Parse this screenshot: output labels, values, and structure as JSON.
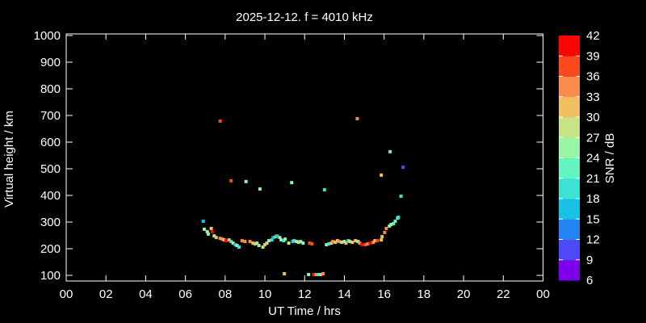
{
  "title": "2025-12-12. f = 4010 kHz",
  "colors": {
    "background": "#000000",
    "foreground": "#ffffff"
  },
  "axes": {
    "x": {
      "label": "UT Time / hrs",
      "min": 0,
      "max": 24,
      "tick_step_hrs": 2,
      "tick_labels": [
        "00",
        "02",
        "04",
        "06",
        "08",
        "10",
        "12",
        "14",
        "16",
        "18",
        "20",
        "22",
        "00"
      ]
    },
    "y": {
      "label": "Virtual height / km",
      "min": 100,
      "max": 1000,
      "tick_step_km": 100,
      "tick_labels": [
        "100",
        "200",
        "300",
        "400",
        "500",
        "600",
        "700",
        "800",
        "900",
        "1000"
      ]
    }
  },
  "colorbar": {
    "label": "SNR / dB",
    "min": 6,
    "max": 42,
    "step": 3,
    "tick_labels": [
      "6",
      "9",
      "12",
      "15",
      "18",
      "21",
      "24",
      "27",
      "30",
      "33",
      "36",
      "39",
      "42"
    ],
    "segment_colors_bottom_to_top": [
      "#7c00ea",
      "#4d49f6",
      "#2484f4",
      "#17c2e6",
      "#3be3d4",
      "#62f5c0",
      "#99f4a5",
      "#c6e385",
      "#f0c060",
      "#f98c4a",
      "#fb4a1e",
      "#fb0404"
    ]
  },
  "chart_data": {
    "type": "scatter",
    "title": "2025-12-12. f = 4010 kHz",
    "xlabel": "UT Time / hrs",
    "ylabel": "Virtual height / km",
    "xlim": [
      0,
      24
    ],
    "ylim": [
      100,
      1000
    ],
    "grid": false,
    "legend_position": "colorbar-right",
    "color_encoding": "SNR / dB",
    "points_format": [
      "ut_hours",
      "virtual_height_km",
      "snr_db"
    ],
    "points": [
      [
        6.9,
        303,
        16
      ],
      [
        6.95,
        273,
        25
      ],
      [
        7.1,
        264,
        28
      ],
      [
        7.15,
        255,
        25
      ],
      [
        7.3,
        276,
        31
      ],
      [
        7.35,
        264,
        40
      ],
      [
        7.45,
        248,
        25
      ],
      [
        7.55,
        242,
        31
      ],
      [
        7.75,
        239,
        34
      ],
      [
        7.85,
        236,
        34
      ],
      [
        7.95,
        233,
        31
      ],
      [
        8.05,
        230,
        40
      ],
      [
        8.2,
        233,
        31
      ],
      [
        8.3,
        227,
        19
      ],
      [
        8.4,
        221,
        28
      ],
      [
        8.5,
        215,
        16
      ],
      [
        8.6,
        212,
        25
      ],
      [
        8.7,
        206,
        19
      ],
      [
        8.85,
        230,
        34
      ],
      [
        9.0,
        227,
        34
      ],
      [
        9.25,
        227,
        34
      ],
      [
        9.4,
        221,
        31
      ],
      [
        9.5,
        218,
        31
      ],
      [
        9.6,
        221,
        25
      ],
      [
        9.7,
        212,
        25
      ],
      [
        9.9,
        206,
        28
      ],
      [
        10.0,
        215,
        31
      ],
      [
        10.1,
        221,
        28
      ],
      [
        10.2,
        230,
        25
      ],
      [
        10.35,
        233,
        19
      ],
      [
        10.42,
        242,
        16
      ],
      [
        10.55,
        245,
        31
      ],
      [
        10.62,
        248,
        16
      ],
      [
        10.75,
        242,
        25
      ],
      [
        10.82,
        233,
        25
      ],
      [
        10.95,
        230,
        19
      ],
      [
        11.02,
        236,
        25
      ],
      [
        11.2,
        221,
        28
      ],
      [
        11.4,
        227,
        16
      ],
      [
        11.47,
        230,
        19
      ],
      [
        11.6,
        227,
        25
      ],
      [
        11.7,
        224,
        28
      ],
      [
        11.8,
        227,
        25
      ],
      [
        11.92,
        221,
        25
      ],
      [
        12.25,
        221,
        37
      ],
      [
        12.37,
        218,
        37
      ],
      [
        13.1,
        215,
        25
      ],
      [
        13.22,
        218,
        19
      ],
      [
        13.35,
        221,
        31
      ],
      [
        13.42,
        227,
        34
      ],
      [
        13.55,
        224,
        31
      ],
      [
        13.65,
        230,
        31
      ],
      [
        13.75,
        227,
        34
      ],
      [
        13.87,
        224,
        25
      ],
      [
        14.0,
        227,
        28
      ],
      [
        14.08,
        221,
        31
      ],
      [
        14.2,
        230,
        19
      ],
      [
        14.28,
        227,
        25
      ],
      [
        14.4,
        224,
        31
      ],
      [
        14.56,
        230,
        31
      ],
      [
        14.69,
        227,
        25
      ],
      [
        14.77,
        221,
        34
      ],
      [
        14.89,
        215,
        40
      ],
      [
        15.05,
        215,
        37
      ],
      [
        15.17,
        218,
        34
      ],
      [
        15.3,
        221,
        40
      ],
      [
        15.46,
        224,
        34
      ],
      [
        15.54,
        230,
        31
      ],
      [
        15.66,
        230,
        37
      ],
      [
        15.86,
        233,
        31
      ],
      [
        15.9,
        245,
        31
      ],
      [
        16.03,
        261,
        34
      ],
      [
        16.11,
        276,
        34
      ],
      [
        16.27,
        285,
        25
      ],
      [
        16.35,
        291,
        25
      ],
      [
        16.47,
        294,
        22
      ],
      [
        16.56,
        303,
        22
      ],
      [
        16.68,
        315,
        22
      ],
      [
        16.72,
        318,
        19
      ],
      [
        10.98,
        106,
        31
      ],
      [
        12.2,
        103,
        25
      ],
      [
        12.45,
        103,
        40
      ],
      [
        12.57,
        103,
        34
      ],
      [
        12.69,
        103,
        19
      ],
      [
        12.81,
        103,
        31
      ],
      [
        12.93,
        106,
        34
      ],
      [
        7.75,
        679,
        37
      ],
      [
        8.3,
        455,
        37
      ],
      [
        9.05,
        452,
        25
      ],
      [
        9.75,
        424,
        25
      ],
      [
        11.35,
        448,
        25
      ],
      [
        13.0,
        421,
        19
      ],
      [
        14.65,
        688,
        34
      ],
      [
        15.86,
        476,
        31
      ],
      [
        16.3,
        564,
        22
      ],
      [
        16.85,
        397,
        19
      ],
      [
        16.95,
        506,
        10
      ]
    ]
  }
}
